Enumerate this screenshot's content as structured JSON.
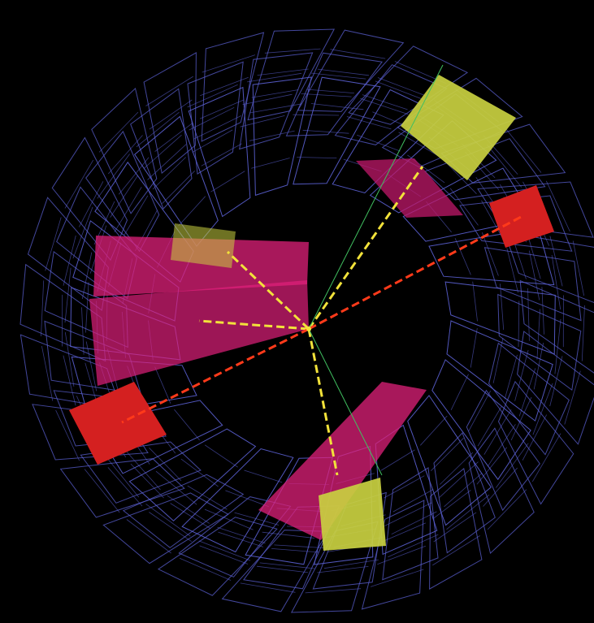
{
  "scene": {
    "background": "#000000",
    "detector_color": "#5a5fd0",
    "hadronic_color": "#e0207a",
    "electromagnetic_color": "#d42020",
    "jet_color": "#c9d040",
    "track_yellow": "#f2e23a",
    "track_red": "#ff3a1a",
    "track_green": "#40c060"
  }
}
